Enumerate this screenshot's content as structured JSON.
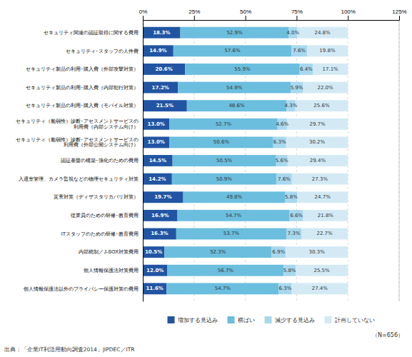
{
  "chart_data": {
    "type": "bar",
    "orientation": "horizontal",
    "stacked": true,
    "data_labels": true,
    "grid": true,
    "legend": "bottom",
    "categories": [
      "セキュリティ関連の認証取得に関する費用",
      "セキュリティ･スタッフの人件費",
      "セキュリティ製品の利用･購入費（外部攻撃対策）",
      "セキュリティ製品の利用･購入費（内部犯行対策）",
      "セキュリティ製品の利用･購入費（モバイル対策）",
      "セキュリティ（脆弱性）診断･アセスメントサービスの\n利用費（内部システム向け）",
      "セキュリティ（脆弱性）診断･アセスメントサービスの\n利用費（外部公開システム向け）",
      "認証基盤の構築･強化のための費用",
      "入退室管理、カメラ監視などの物理セキュリティ対策",
      "災害対策（ディザスタリカバリ対策）",
      "従業員のための研修･教育費用",
      "ITスタッフのための研修･教育費用",
      "内部統制／J-SOX対策費用",
      "個人情報保護法対策費用",
      "個人情報保護法以外のプライバシー保護対策の費用"
    ],
    "series": [
      {
        "name": "増加する見込み",
        "color": "#2155A3",
        "values": [
          18.3,
          14.9,
          20.6,
          17.2,
          21.5,
          13.0,
          13.0,
          14.5,
          14.2,
          19.7,
          16.9,
          16.3,
          10.5,
          12.0,
          11.6
        ],
        "value_labels": [
          "18.3%",
          "14.9%",
          "20.6%",
          "17.2%",
          "21.5%",
          "13.0%",
          "13.0%",
          "14.5%",
          "14.2%",
          "19.7%",
          "16.9%",
          "16.3%",
          "10.5%",
          "12.0%",
          "11.6%"
        ]
      },
      {
        "name": "横ばい",
        "color": "#6BBEDE",
        "values": [
          52.9,
          57.6,
          55.9,
          54.9,
          48.6,
          52.7,
          50.6,
          50.5,
          50.9,
          49.8,
          54.7,
          53.7,
          52.3,
          56.7,
          54.7
        ],
        "value_labels": [
          "52.9%",
          "57.6%",
          "55.9%",
          "54.9%",
          "48.6%",
          "52.7%",
          "50.6%",
          "50.5%",
          "50.9%",
          "49.8%",
          "54.7%",
          "53.7%",
          "52.3%",
          "56.7%",
          "54.7%"
        ]
      },
      {
        "name": "減少する見込み",
        "color": "#A8D8EE",
        "values": [
          4.0,
          7.6,
          6.4,
          5.9,
          4.3,
          4.6,
          6.3,
          5.6,
          7.6,
          5.8,
          6.6,
          7.3,
          6.9,
          5.8,
          6.3
        ],
        "value_labels": [
          "4.0%",
          "7.6%",
          "6.4%",
          "5.9%",
          "4.3%",
          "4.6%",
          "6.3%",
          "5.6%",
          "7.6%",
          "5.8%",
          "6.6%",
          "7.3%",
          "6.9%",
          "5.8%",
          "6.3%"
        ]
      },
      {
        "name": "計画していない",
        "color": "#D3EAF5",
        "values": [
          24.8,
          19.8,
          17.1,
          22.0,
          25.6,
          29.7,
          30.2,
          29.4,
          27.3,
          24.7,
          21.8,
          22.7,
          30.3,
          25.5,
          27.4
        ],
        "value_labels": [
          "24.8%",
          "19.8%",
          "17.1%",
          "22.0%",
          "25.6%",
          "29.7%",
          "30.2%",
          "29.4%",
          "27.3%",
          "24.7%",
          "21.8%",
          "22.7%",
          "30.3%",
          "25.5%",
          "27.4%"
        ]
      }
    ],
    "xlim": [
      0,
      125
    ],
    "xticks": [
      {
        "value": 0,
        "label": "0%"
      },
      {
        "value": 25,
        "label": "25%"
      },
      {
        "value": 50,
        "label": "50%"
      },
      {
        "value": 75,
        "label": "75%"
      },
      {
        "value": 100,
        "label": "100%"
      },
      {
        "value": 125,
        "label": "125%"
      }
    ],
    "annotations": [
      "（N=656）",
      "出典：「企業IT利活用動向調査2014」JIPDEC／ITR"
    ]
  }
}
